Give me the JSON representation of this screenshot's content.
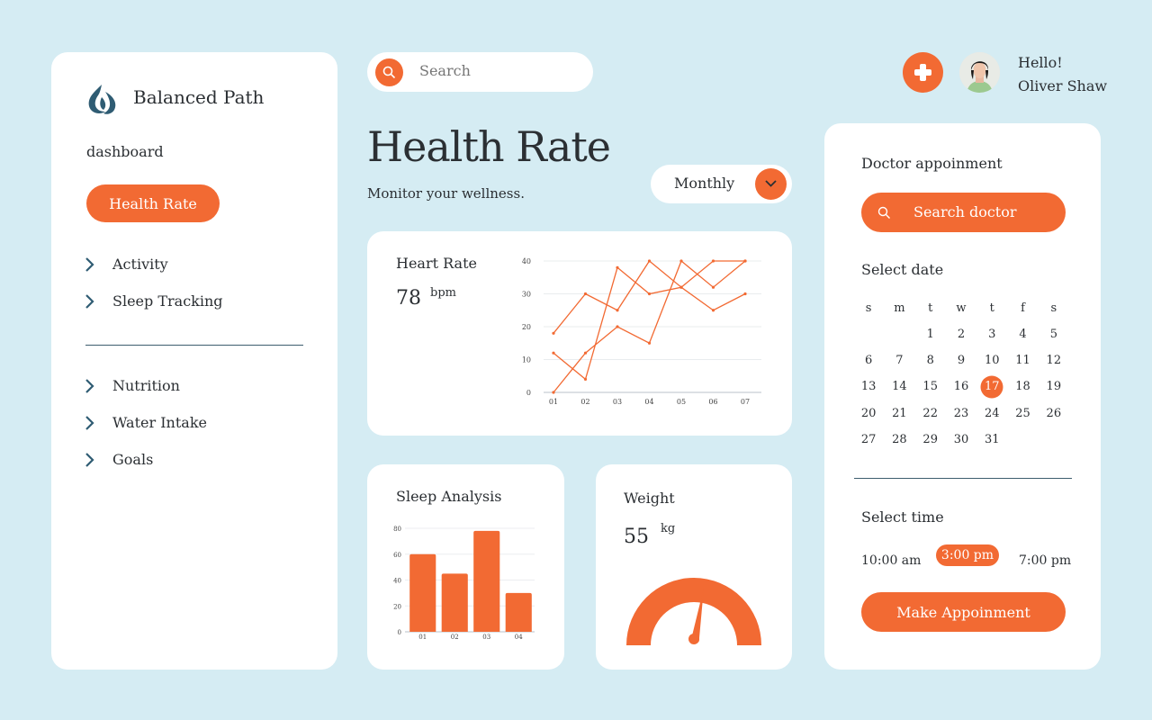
{
  "app": {
    "brand": "Balanced Path"
  },
  "sidebar": {
    "section": "dashboard",
    "active": "Health Rate",
    "items_top": [
      "Activity",
      "Sleep Tracking"
    ],
    "items_bottom": [
      "Nutrition",
      "Water Intake",
      "Goals"
    ]
  },
  "search": {
    "placeholder": "Search"
  },
  "user": {
    "greeting": "Hello!",
    "name": "Oliver Shaw"
  },
  "page": {
    "title": "Health Rate",
    "subtitle": "Monitor your wellness.",
    "period": "Monthly"
  },
  "heart": {
    "title": "Heart Rate",
    "value": "78",
    "unit": "bpm",
    "chart_data": {
      "type": "line",
      "x": [
        "01",
        "02",
        "03",
        "04",
        "05",
        "06",
        "07"
      ],
      "yticks": [
        "0",
        "10",
        "20",
        "30",
        "40"
      ],
      "ylim": [
        0,
        40
      ],
      "series": [
        {
          "values": [
            18,
            30,
            25,
            40,
            32,
            40,
            40
          ]
        },
        {
          "values": [
            12,
            4,
            38,
            30,
            32,
            25,
            30
          ]
        },
        {
          "values": [
            0,
            12,
            20,
            15,
            40,
            32,
            40
          ]
        }
      ],
      "color": "#f26a33"
    }
  },
  "sleep": {
    "title": "Sleep Analysis",
    "chart_data": {
      "type": "bar",
      "categories": [
        "01",
        "02",
        "03",
        "04"
      ],
      "values": [
        60,
        45,
        78,
        30
      ],
      "yticks": [
        "0",
        "20",
        "40",
        "60",
        "80"
      ],
      "ylim": [
        0,
        80
      ],
      "color": "#f26a33"
    }
  },
  "weight": {
    "title": "Weight",
    "value": "55",
    "unit": "kg",
    "gauge_fraction": 0.55
  },
  "doctor": {
    "title": "Doctor appoinment",
    "search_label": "Search doctor",
    "date_label": "Select date",
    "weekdays": [
      "s",
      "m",
      "t",
      "w",
      "t",
      "f",
      "s"
    ],
    "weeks": [
      [
        "",
        "",
        "1",
        "2",
        "3",
        "4",
        "5"
      ],
      [
        "6",
        "7",
        "8",
        "9",
        "10",
        "11",
        "12"
      ],
      [
        "13",
        "14",
        "15",
        "16",
        "17",
        "18",
        "19"
      ],
      [
        "20",
        "21",
        "22",
        "23",
        "24",
        "25",
        "26"
      ],
      [
        "27",
        "28",
        "29",
        "30",
        "31",
        "",
        ""
      ]
    ],
    "selected_date": "17",
    "time_label": "Select time",
    "times": [
      "10:00 am",
      "3:00 pm",
      "7:00 pm"
    ],
    "selected_time": "3:00 pm",
    "action": "Make Appoinment"
  },
  "colors": {
    "accent": "#f26a33",
    "background": "#d5ecf3",
    "text": "#2b2f33",
    "logo": "#2f5c73"
  },
  "icons": [
    "logo-icon",
    "chevron-right-icon",
    "search-icon",
    "plus-cross-icon",
    "chevron-down-icon"
  ]
}
